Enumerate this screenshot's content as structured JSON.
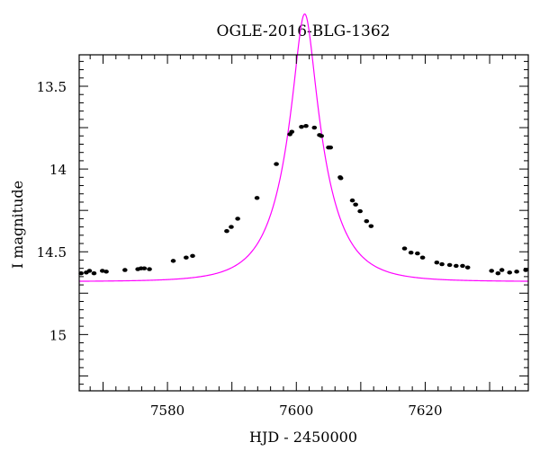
{
  "chart_data": {
    "type": "scatter",
    "title": "OGLE-2016-BLG-1362",
    "xlabel": "HJD - 2450000",
    "ylabel": "I magnitude",
    "xlim": [
      7566.3,
      7636.0
    ],
    "ylim": [
      15.34,
      13.31
    ],
    "y_inverted": true,
    "x_ticks": [
      7580,
      7600,
      7620
    ],
    "y_ticks": [
      13.5,
      14,
      14.5,
      15
    ],
    "y_tick_labels": [
      "13.5",
      "14",
      "14.5",
      "15"
    ],
    "grid": false,
    "series": [
      {
        "kind": "points",
        "color": "#000000",
        "x": [
          7566.6,
          7567.4,
          7567.9,
          7568.6,
          7569.9,
          7570.5,
          7573.4,
          7575.4,
          7575.9,
          7576.4,
          7577.2,
          7580.9,
          7582.9,
          7583.9,
          7589.2,
          7589.9,
          7590.9,
          7593.9,
          7596.9,
          7599.0,
          7599.3,
          7600.8,
          7601.5,
          7602.8,
          7603.6,
          7603.9,
          7605.0,
          7605.3,
          7606.8,
          7606.9,
          7608.7,
          7609.2,
          7609.9,
          7610.9,
          7611.6,
          7616.8,
          7617.8,
          7618.8,
          7619.6,
          7621.8,
          7622.6,
          7623.8,
          7624.8,
          7625.8,
          7626.6,
          7630.3,
          7631.3,
          7631.9,
          7633.1,
          7634.2,
          7635.6
        ],
        "y": [
          14.63,
          14.625,
          14.615,
          14.63,
          14.615,
          14.62,
          14.61,
          14.605,
          14.6,
          14.6,
          14.605,
          14.555,
          14.535,
          14.525,
          14.375,
          14.35,
          14.3,
          14.175,
          13.97,
          13.79,
          13.775,
          13.745,
          13.74,
          13.75,
          13.795,
          13.8,
          13.87,
          13.87,
          14.05,
          14.055,
          14.19,
          14.215,
          14.255,
          14.315,
          14.345,
          14.48,
          14.505,
          14.51,
          14.535,
          14.565,
          14.575,
          14.58,
          14.585,
          14.585,
          14.595,
          14.615,
          14.63,
          14.61,
          14.625,
          14.62,
          14.61
        ]
      },
      {
        "kind": "model-curve",
        "color": "#ff00ff",
        "model": "point-lens",
        "t0": 7601.3,
        "u0": 0.23,
        "tE": 6.3,
        "baseline_mag": 14.68
      }
    ]
  }
}
